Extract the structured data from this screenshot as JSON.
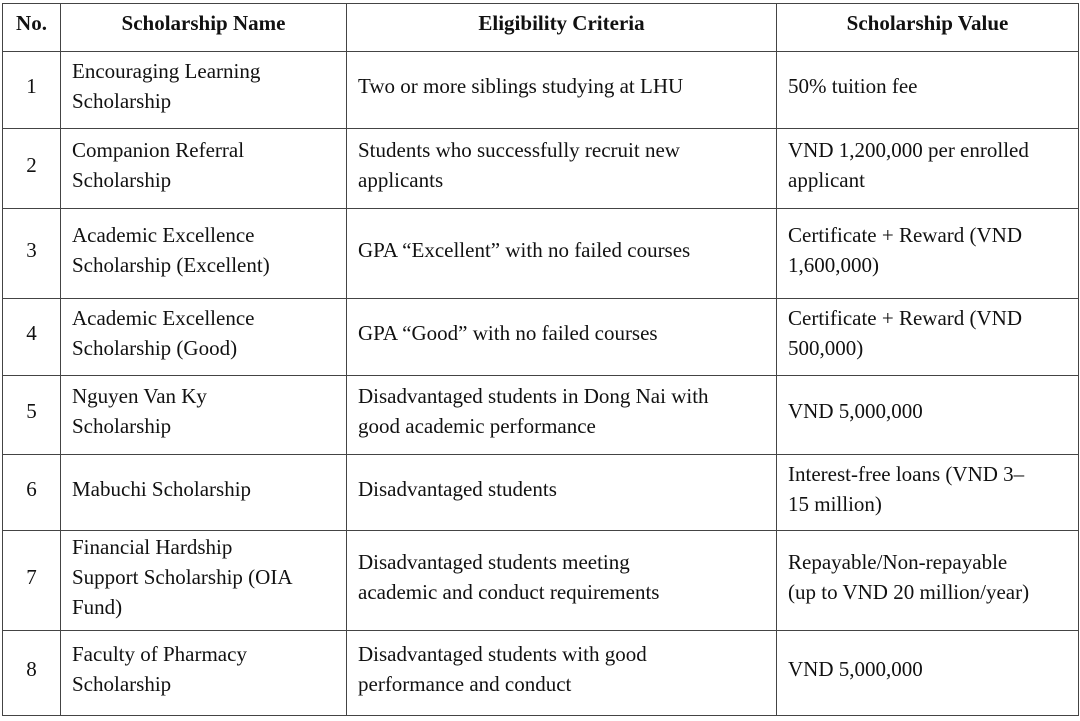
{
  "headers": [
    "No.",
    "Scholarship Name",
    "Eligibility Criteria",
    "Scholarship Value"
  ],
  "rows": [
    {
      "no": "1",
      "name": "Encouraging Learning\nScholarship",
      "criteria": "Two or more siblings studying at LHU",
      "value": "50% tuition fee"
    },
    {
      "no": "2",
      "name": "Companion Referral\nScholarship",
      "criteria": "Students who successfully recruit new\napplicants",
      "value": "VND 1,200,000 per enrolled\napplicant"
    },
    {
      "no": "3",
      "name": "Academic Excellence\nScholarship (Excellent)",
      "criteria": "GPA “Excellent” with no failed courses",
      "value": "Certificate + Reward (VND\n1,600,000)"
    },
    {
      "no": "4",
      "name": "Academic Excellence\nScholarship (Good)",
      "criteria": "GPA “Good” with no failed courses",
      "value": "Certificate + Reward (VND\n500,000)"
    },
    {
      "no": "5",
      "name": "Nguyen Van Ky\nScholarship",
      "criteria": "Disadvantaged students in Dong Nai with\ngood academic performance",
      "value": "VND 5,000,000"
    },
    {
      "no": "6",
      "name": "Mabuchi Scholarship",
      "criteria": "Disadvantaged students",
      "value": "Interest-free loans (VND 3–\n15 million)"
    },
    {
      "no": "7",
      "name": "Financial Hardship\nSupport Scholarship (OIA\nFund)",
      "criteria": "Disadvantaged students meeting\nacademic and conduct requirements",
      "value": "Repayable/Non-repayable\n(up to VND 20 million/year)"
    },
    {
      "no": "8",
      "name": "Faculty of Pharmacy\nScholarship",
      "criteria": "Disadvantaged students with good\nperformance and conduct",
      "value": "VND 5,000,000"
    }
  ]
}
